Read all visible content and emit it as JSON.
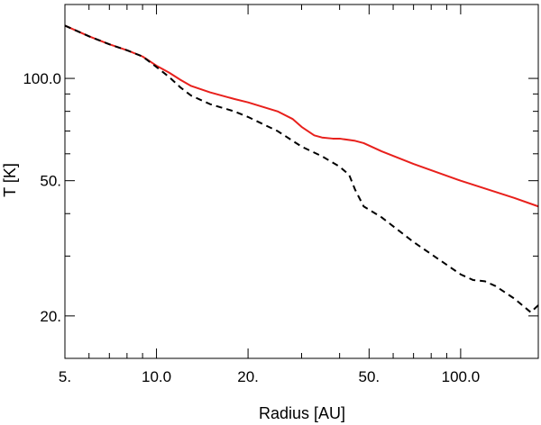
{
  "chart_data": {
    "type": "line",
    "xlabel": "Radius [AU]",
    "ylabel": "T [K]",
    "xscale": "log",
    "yscale": "log",
    "xlim": [
      5,
      180
    ],
    "ylim": [
      15,
      165
    ],
    "grid": false,
    "legend": "none",
    "x_ticks": [
      {
        "value": 5,
        "label": "5."
      },
      {
        "value": 10,
        "label": "10.0"
      },
      {
        "value": 20,
        "label": "20."
      },
      {
        "value": 50,
        "label": "50."
      },
      {
        "value": 100,
        "label": "100.0"
      }
    ],
    "y_ticks": [
      {
        "value": 20,
        "label": "20."
      },
      {
        "value": 50,
        "label": "50."
      },
      {
        "value": 100,
        "label": "100.0"
      }
    ],
    "series": [
      {
        "color": "#e8201c",
        "style": "solid",
        "x": [
          5,
          6,
          7,
          8,
          9,
          10,
          11,
          12,
          13,
          15,
          18,
          20,
          25,
          28,
          30,
          33,
          35,
          38,
          40,
          45,
          48,
          55,
          70,
          100,
          150,
          180
        ],
        "y": [
          143,
          133,
          126,
          121,
          116,
          109,
          104,
          99,
          95,
          91,
          87,
          85,
          80,
          76,
          72,
          68,
          67,
          66.5,
          66.5,
          65.5,
          64.5,
          61,
          56,
          50,
          44.5,
          42
        ]
      },
      {
        "color": "#000000",
        "style": "dashed",
        "x": [
          5,
          6,
          7,
          8,
          9,
          10,
          11,
          12,
          13,
          15,
          18,
          20,
          25,
          30,
          35,
          40,
          43,
          45,
          48,
          55,
          70,
          100,
          110,
          120,
          130,
          150,
          170,
          180
        ],
        "y": [
          143,
          133,
          126,
          121,
          116,
          108,
          101,
          94,
          89,
          84,
          80,
          77,
          70,
          63,
          59,
          55,
          52,
          47,
          42,
          39,
          33,
          26.5,
          25.5,
          25.3,
          24.5,
          22.5,
          20.5,
          21.5
        ]
      }
    ]
  }
}
